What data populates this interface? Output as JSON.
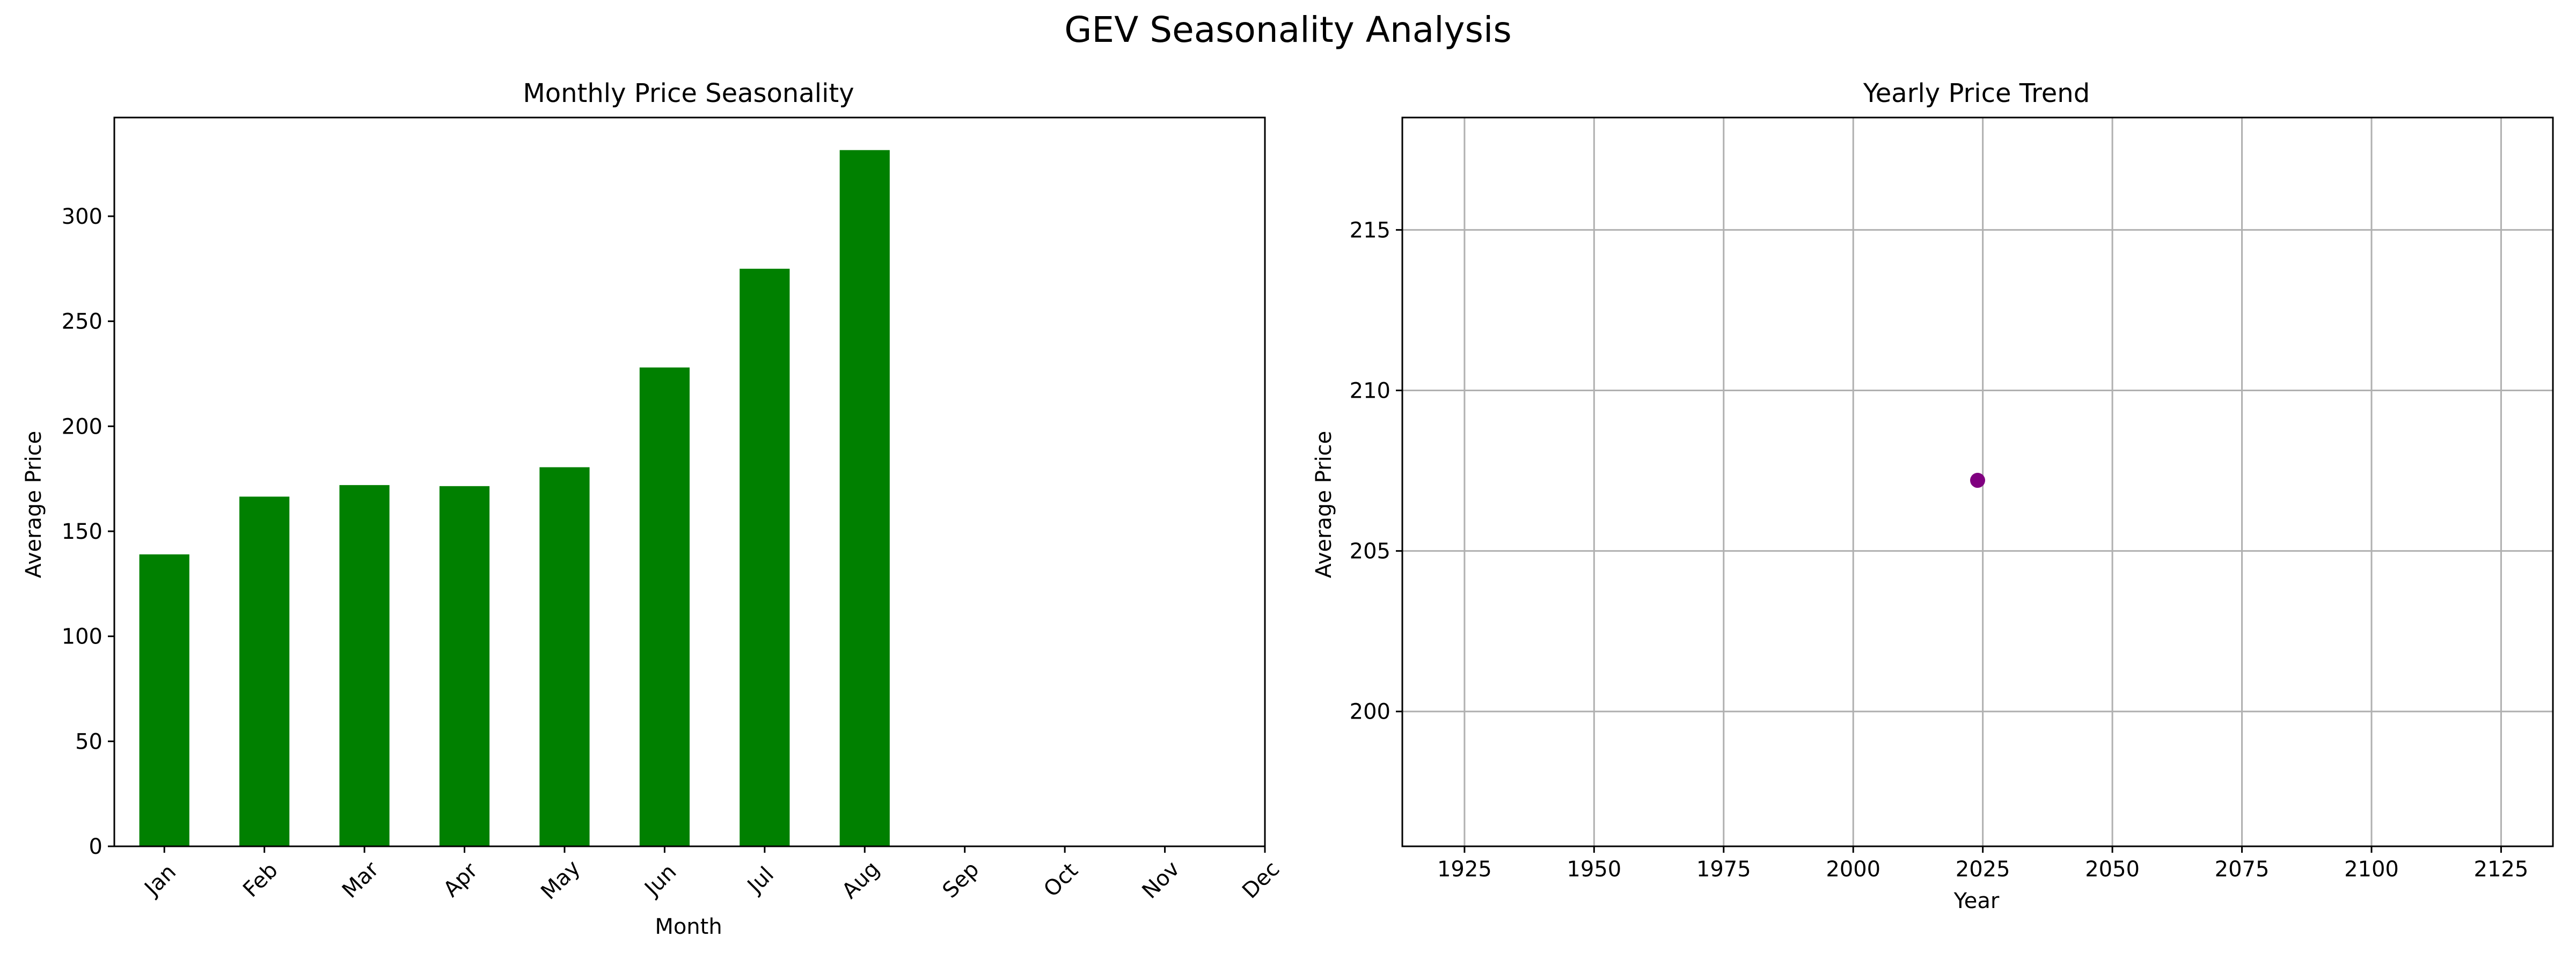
{
  "figure": {
    "title": "GEV Seasonality Analysis"
  },
  "chart_data": [
    {
      "type": "bar",
      "title": "Monthly Price Seasonality",
      "xlabel": "Month",
      "ylabel": "Average Price",
      "categories": [
        "Jan",
        "Feb",
        "Mar",
        "Apr",
        "May",
        "Jun",
        "Jul",
        "Aug",
        "Sep",
        "Oct",
        "Nov",
        "Dec"
      ],
      "values": [
        139,
        166.5,
        172,
        171.5,
        180.5,
        228,
        275,
        331.5,
        null,
        null,
        null,
        null
      ],
      "ylim": [
        0,
        347
      ],
      "yticks": [
        0,
        50,
        100,
        150,
        200,
        250,
        300
      ],
      "color": "#008000",
      "grid": false,
      "legend": "none"
    },
    {
      "type": "scatter",
      "title": "Yearly Price Trend",
      "xlabel": "Year",
      "ylabel": "Average Price",
      "points": [
        {
          "x": 2024,
          "y": 207.2
        }
      ],
      "xlim": [
        1913,
        2135
      ],
      "ylim": [
        195.8,
        218.5
      ],
      "xticks": [
        1925,
        1950,
        1975,
        2000,
        2025,
        2050,
        2075,
        2100,
        2125
      ],
      "yticks": [
        200,
        205,
        210,
        215
      ],
      "color": "#800080",
      "grid": true,
      "legend": "none"
    }
  ]
}
